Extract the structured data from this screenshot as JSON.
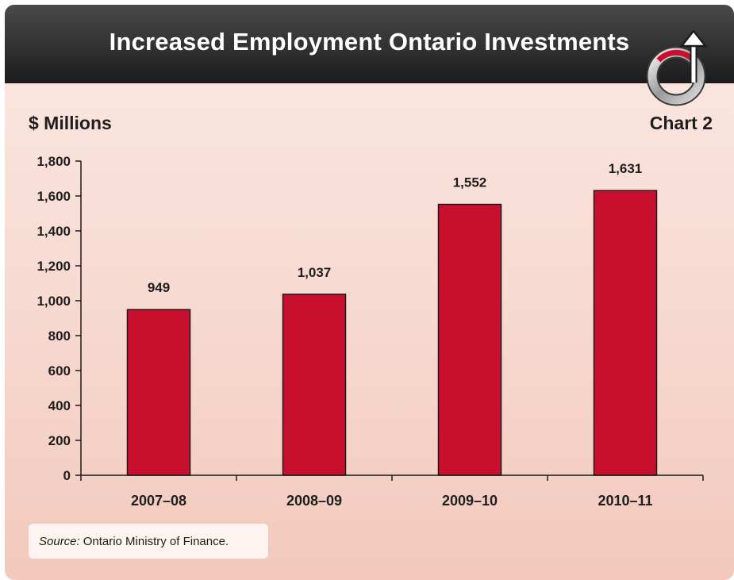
{
  "header": {
    "title": "Increased Employment Ontario Investments"
  },
  "unit_label": "$ Millions",
  "chart_number": "Chart 2",
  "source": {
    "label": "Source:",
    "text": "Ontario Ministry of Finance."
  },
  "colors": {
    "bar": "#c8102e",
    "header": "#2b2b2b",
    "background": "#f6d7cd",
    "logo_accent": "#c8102e"
  },
  "icons": {
    "logo": "circular-arrow-logo-icon"
  },
  "chart_data": {
    "type": "bar",
    "title": "Increased Employment Ontario Investments",
    "ylabel": "$ Millions",
    "xlabel": "",
    "categories": [
      "2007–08",
      "2008–09",
      "2009–10",
      "2010–11"
    ],
    "values": [
      949,
      1037,
      1552,
      1631
    ],
    "value_labels": [
      "949",
      "1,037",
      "1,552",
      "1,631"
    ],
    "ylim": [
      0,
      1800
    ],
    "yticks": [
      0,
      200,
      400,
      600,
      800,
      1000,
      1200,
      1400,
      1600,
      1800
    ],
    "ytick_labels": [
      "0",
      "200",
      "400",
      "600",
      "800",
      "1,000",
      "1,200",
      "1,400",
      "1,600",
      "1,800"
    ],
    "grid": false,
    "legend": "none"
  }
}
